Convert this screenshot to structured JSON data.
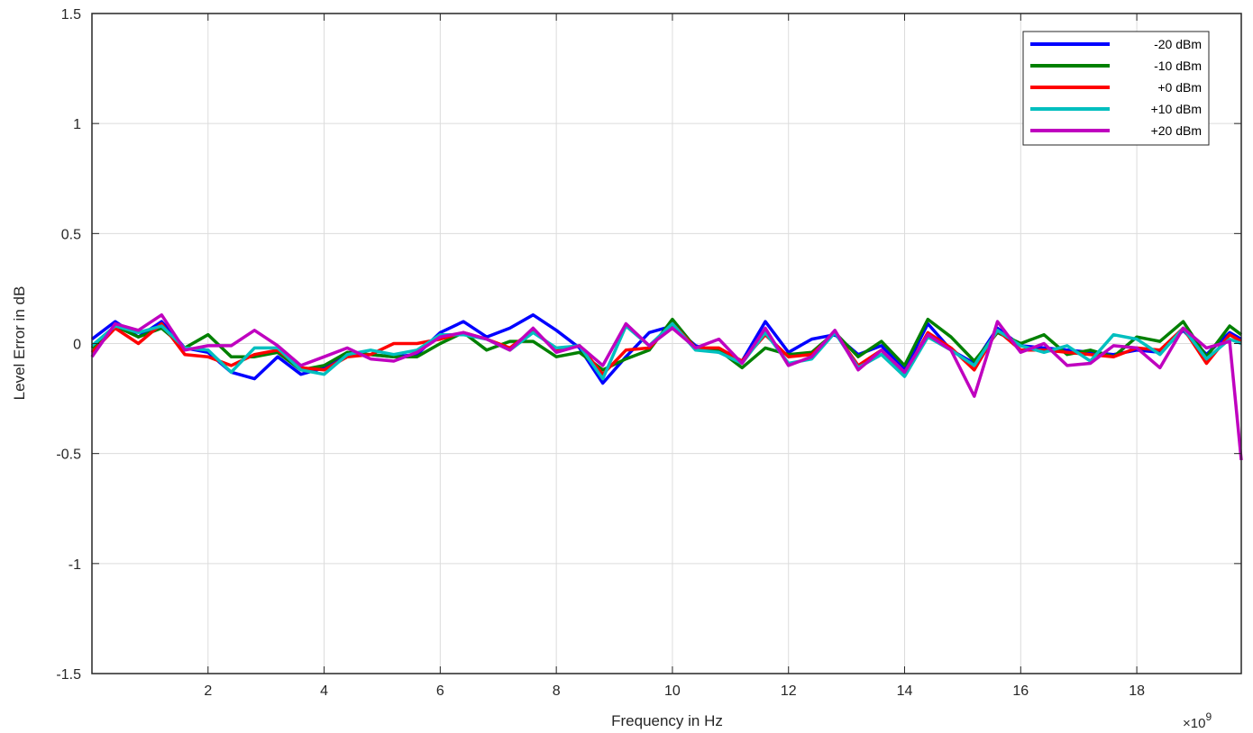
{
  "chart_data": {
    "type": "line",
    "title": "",
    "xlabel": "Frequency in Hz",
    "ylabel": "Level Error in dB",
    "x_exponent_label": "×10",
    "x_exponent_power": "9",
    "x_scale": 1000000000,
    "xlim": [
      0.0,
      19.8
    ],
    "ylim": [
      -1.5,
      1.5
    ],
    "xticks": [
      2,
      4,
      6,
      8,
      10,
      12,
      14,
      16,
      18
    ],
    "xtick_labels": [
      "2",
      "4",
      "6",
      "8",
      "10",
      "12",
      "14",
      "16",
      "18"
    ],
    "yticks": [
      -1.5,
      -1,
      -0.5,
      0,
      0.5,
      1,
      1.5
    ],
    "ytick_labels": [
      "-1.5",
      "-1",
      "-0.5",
      "0",
      "0.5",
      "1",
      "1.5"
    ],
    "grid": true,
    "legend_position": "top-right",
    "x": [
      0.0,
      0.4,
      0.8,
      1.2,
      1.6,
      2.0,
      2.4,
      2.8,
      3.2,
      3.6,
      4.0,
      4.4,
      4.8,
      5.2,
      5.6,
      6.0,
      6.4,
      6.8,
      7.2,
      7.6,
      8.0,
      8.4,
      8.8,
      9.2,
      9.6,
      10.0,
      10.4,
      10.8,
      11.2,
      11.6,
      12.0,
      12.4,
      12.8,
      13.2,
      13.6,
      14.0,
      14.4,
      14.8,
      15.2,
      15.6,
      16.0,
      16.4,
      16.8,
      17.2,
      17.6,
      18.0,
      18.4,
      18.8,
      19.2,
      19.6,
      19.8
    ],
    "series": [
      {
        "name": "-20 dBm",
        "color": "#0000ff",
        "values": [
          0.02,
          0.1,
          0.03,
          0.1,
          -0.02,
          -0.04,
          -0.13,
          -0.16,
          -0.06,
          -0.14,
          -0.11,
          -0.05,
          -0.05,
          -0.06,
          -0.05,
          0.05,
          0.1,
          0.03,
          0.07,
          0.13,
          0.06,
          -0.02,
          -0.18,
          -0.06,
          0.05,
          0.08,
          -0.01,
          -0.04,
          -0.08,
          0.1,
          -0.04,
          0.02,
          0.04,
          -0.05,
          -0.01,
          -0.12,
          0.09,
          -0.03,
          -0.09,
          0.07,
          -0.01,
          -0.02,
          -0.03,
          -0.04,
          -0.05,
          -0.03,
          -0.04,
          0.06,
          -0.05,
          0.05,
          0.02
        ]
      },
      {
        "name": "-10 dBm",
        "color": "#008000",
        "values": [
          -0.02,
          0.08,
          0.03,
          0.07,
          -0.02,
          0.04,
          -0.06,
          -0.06,
          -0.04,
          -0.12,
          -0.1,
          -0.04,
          -0.05,
          -0.06,
          -0.06,
          0.0,
          0.05,
          -0.03,
          0.01,
          0.01,
          -0.06,
          -0.04,
          -0.12,
          -0.07,
          -0.03,
          0.11,
          -0.02,
          -0.03,
          -0.11,
          -0.02,
          -0.05,
          -0.04,
          0.05,
          -0.06,
          0.01,
          -0.1,
          0.11,
          0.03,
          -0.08,
          0.05,
          0.0,
          0.04,
          -0.05,
          -0.03,
          -0.06,
          0.03,
          0.01,
          0.1,
          -0.06,
          0.08,
          0.04
        ]
      },
      {
        "name": "+0 dBm",
        "color": "#ff0000",
        "values": [
          -0.04,
          0.07,
          0.0,
          0.09,
          -0.05,
          -0.06,
          -0.1,
          -0.05,
          -0.03,
          -0.11,
          -0.12,
          -0.06,
          -0.05,
          0.0,
          0.0,
          0.02,
          0.05,
          0.02,
          -0.02,
          0.06,
          -0.03,
          -0.01,
          -0.14,
          -0.03,
          -0.02,
          0.09,
          -0.02,
          -0.02,
          -0.08,
          0.04,
          -0.06,
          -0.05,
          0.05,
          -0.1,
          -0.03,
          -0.14,
          0.05,
          -0.02,
          -0.12,
          0.06,
          -0.03,
          -0.03,
          -0.04,
          -0.05,
          -0.06,
          -0.02,
          -0.03,
          0.07,
          -0.09,
          0.04,
          0.01
        ]
      },
      {
        "name": "+10 dBm",
        "color": "#00bfbf",
        "values": [
          -0.01,
          0.08,
          0.05,
          0.08,
          -0.02,
          -0.03,
          -0.13,
          -0.02,
          -0.02,
          -0.12,
          -0.14,
          -0.05,
          -0.03,
          -0.05,
          -0.03,
          0.04,
          0.04,
          0.02,
          -0.03,
          0.05,
          -0.02,
          -0.01,
          -0.16,
          0.08,
          -0.01,
          0.09,
          -0.03,
          -0.04,
          -0.09,
          0.05,
          -0.09,
          -0.07,
          0.05,
          -0.11,
          -0.05,
          -0.15,
          0.03,
          -0.03,
          -0.1,
          0.06,
          -0.01,
          -0.04,
          -0.01,
          -0.08,
          0.04,
          0.02,
          -0.05,
          0.07,
          -0.07,
          0.02,
          0.0
        ]
      },
      {
        "name": "+20 dBm",
        "color": "#bf00bf",
        "values": [
          -0.06,
          0.09,
          0.06,
          0.13,
          -0.03,
          -0.01,
          -0.01,
          0.06,
          -0.01,
          -0.1,
          -0.06,
          -0.02,
          -0.07,
          -0.08,
          -0.04,
          0.03,
          0.05,
          0.02,
          -0.03,
          0.07,
          -0.04,
          -0.01,
          -0.1,
          0.09,
          -0.01,
          0.07,
          -0.02,
          0.02,
          -0.09,
          0.07,
          -0.1,
          -0.06,
          0.06,
          -0.12,
          -0.03,
          -0.13,
          0.04,
          -0.03,
          -0.24,
          0.1,
          -0.04,
          0.0,
          -0.1,
          -0.09,
          -0.01,
          -0.02,
          -0.11,
          0.07,
          -0.02,
          0.01,
          -0.53
        ]
      }
    ]
  }
}
